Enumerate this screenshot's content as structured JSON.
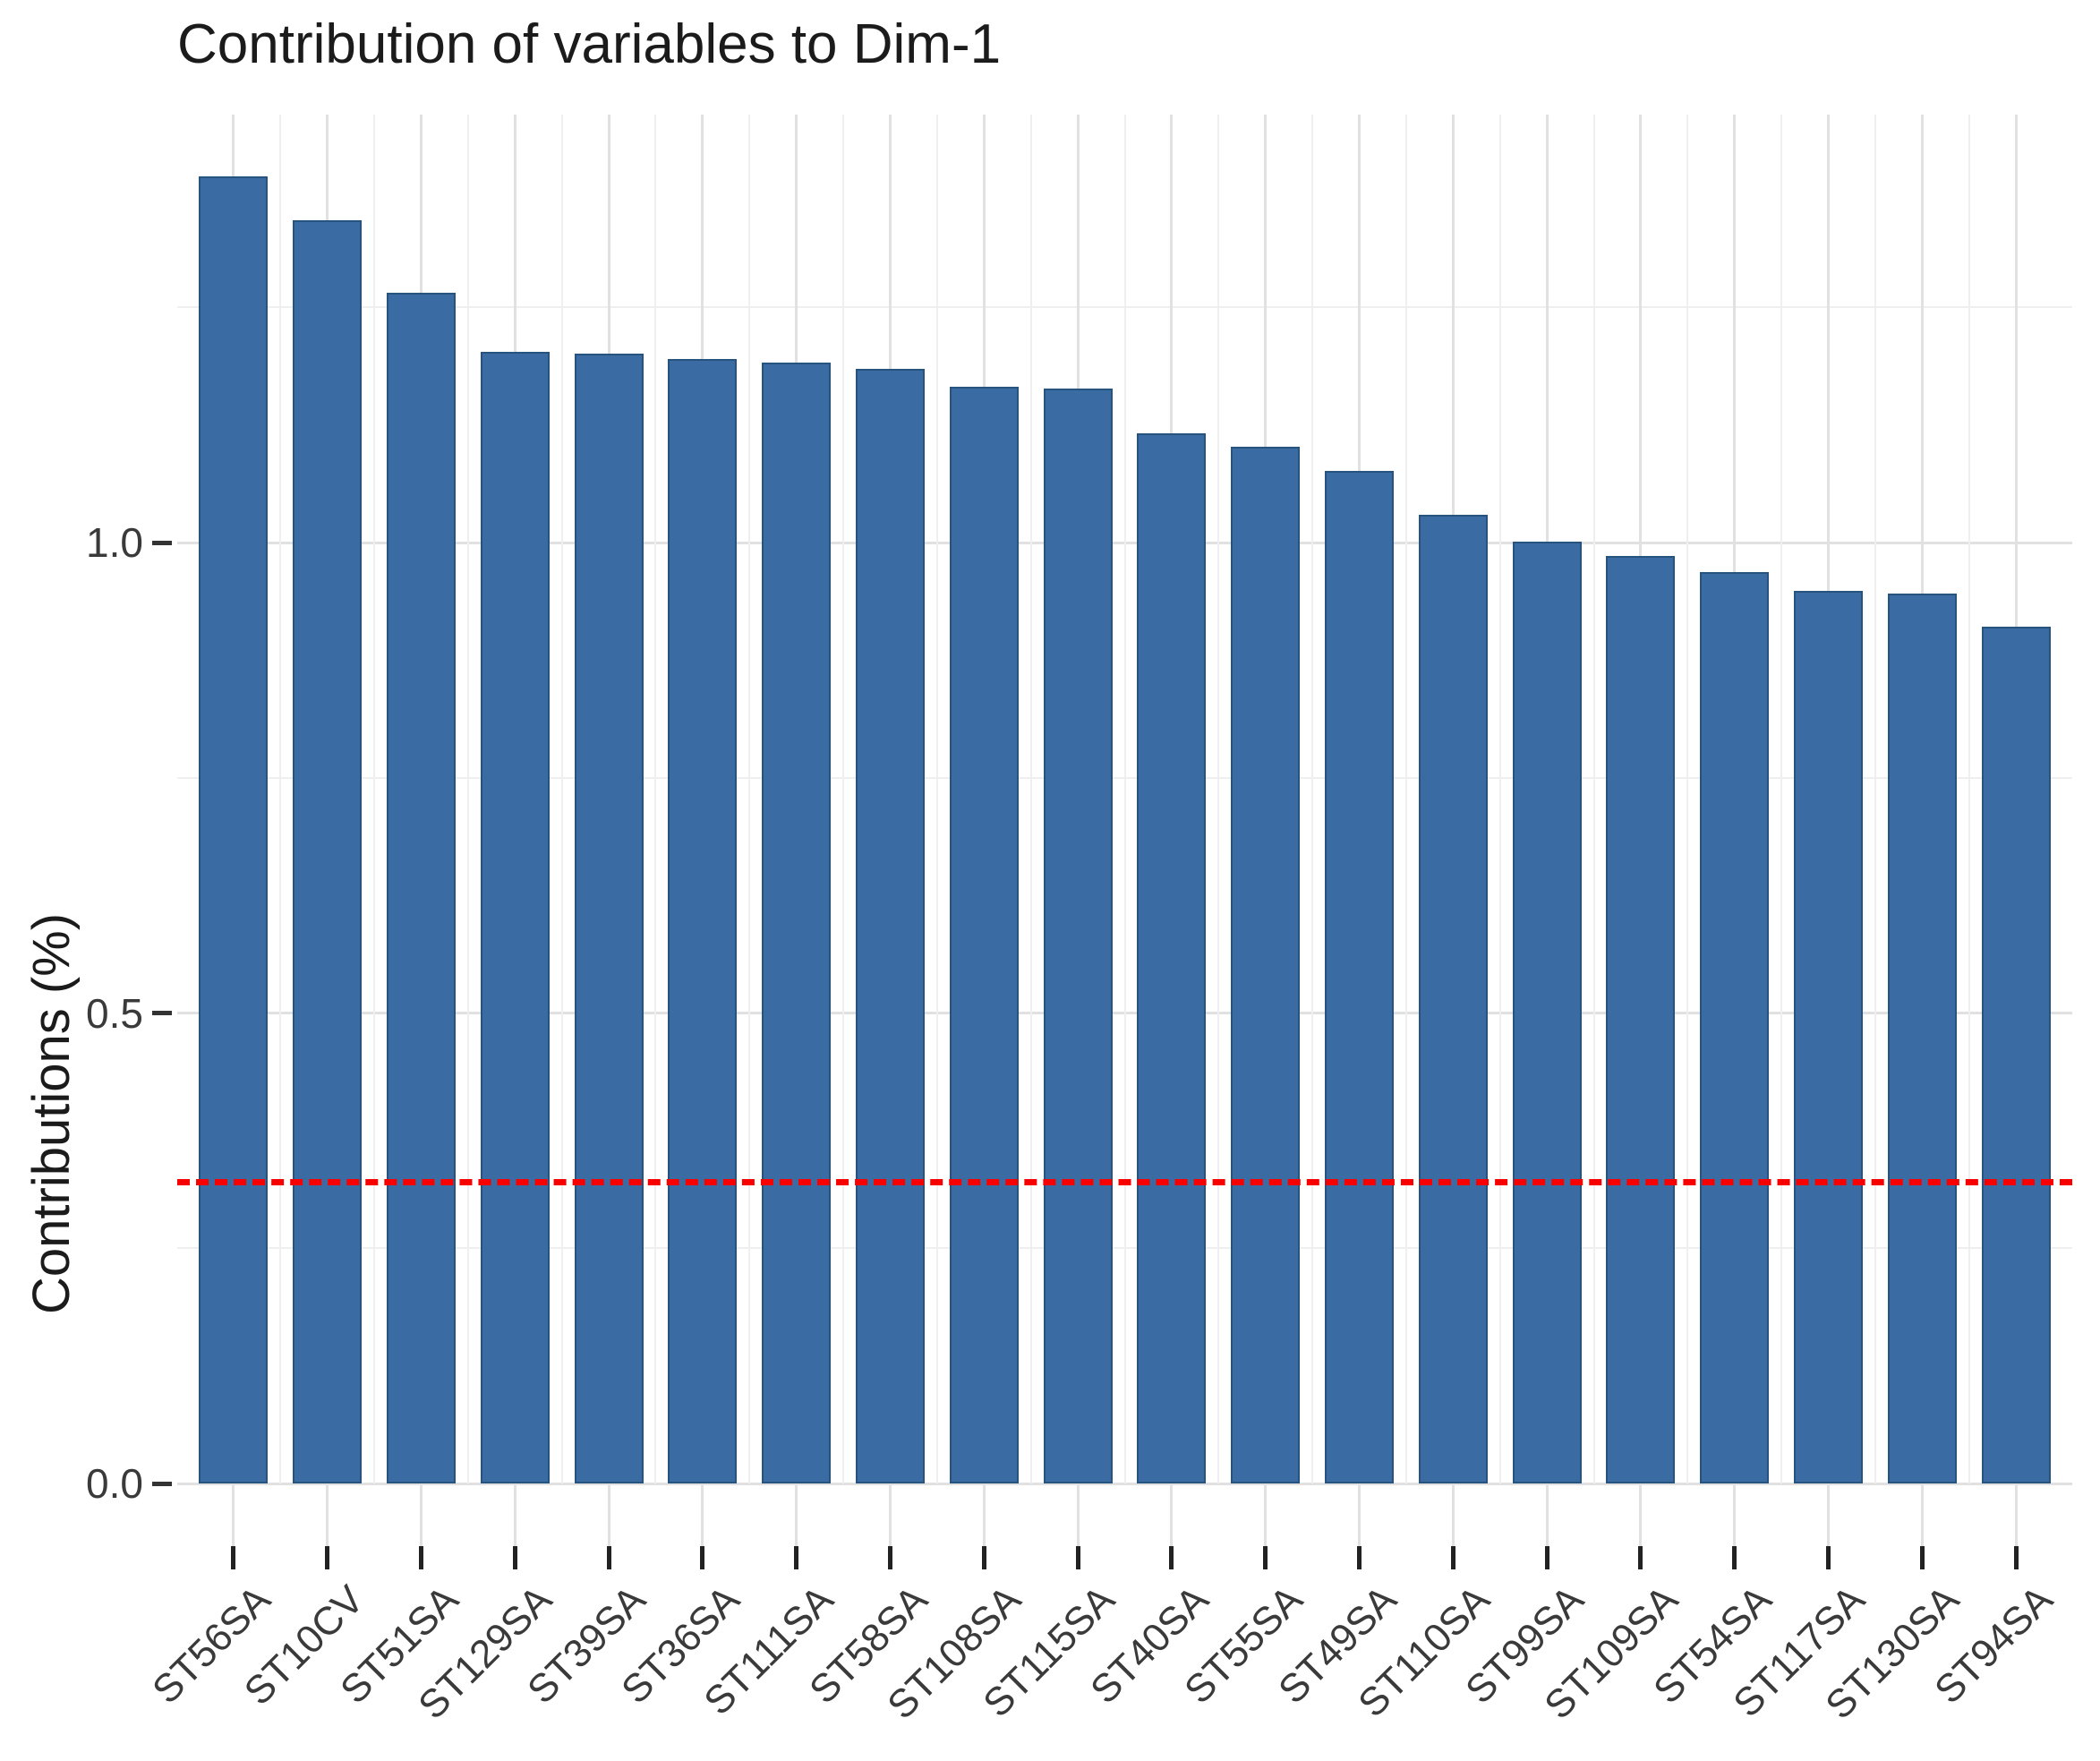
{
  "chart_data": {
    "type": "bar",
    "title": "Contribution of variables to Dim-1",
    "ylabel": "Contributions (%)",
    "xlabel": "",
    "categories": [
      "ST56SA",
      "ST10CV",
      "ST51SA",
      "ST129SA",
      "ST39SA",
      "ST36SA",
      "ST111SA",
      "ST58SA",
      "ST108SA",
      "ST115SA",
      "ST40SA",
      "ST55SA",
      "ST49SA",
      "ST110SA",
      "ST99SA",
      "ST109SA",
      "ST54SA",
      "ST117SA",
      "ST130SA",
      "ST94SA"
    ],
    "values": [
      1.389,
      1.343,
      1.266,
      1.203,
      1.201,
      1.195,
      1.191,
      1.185,
      1.166,
      1.164,
      1.116,
      1.102,
      1.076,
      1.03,
      1.001,
      0.986,
      0.969,
      0.949,
      0.946,
      0.911
    ],
    "ytick_labels": [
      "0.0",
      "0.5",
      "1.0"
    ],
    "ytick_values": [
      0,
      0.5,
      1.0
    ],
    "y_minor_values": [
      0.25,
      0.75,
      1.25
    ],
    "ylim": [
      0,
      1.455
    ],
    "grid": "on",
    "legend": "none",
    "x_label_angle_deg": 45,
    "bar_fill": "#3a6ca3",
    "bar_stroke": "#27547f",
    "grid_major_color": "#e1e1e1",
    "grid_minor_color": "#efefef",
    "threshold_line": {
      "value": 0.32,
      "color": "#f80000",
      "style": "dashed"
    }
  }
}
